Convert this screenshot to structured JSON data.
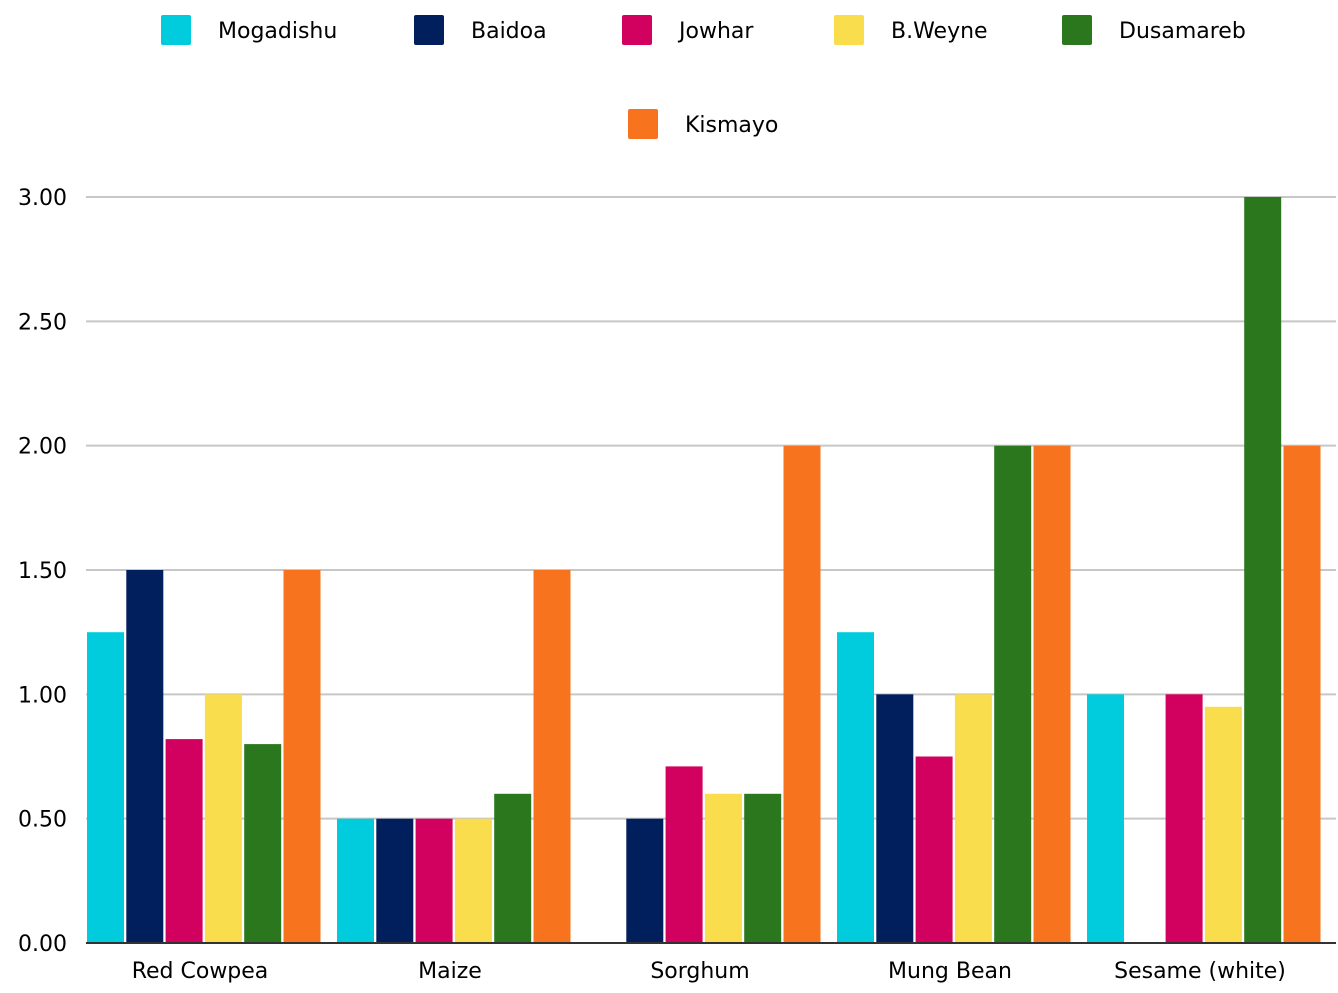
{
  "chart_data": {
    "type": "bar",
    "title": "",
    "xlabel": "",
    "ylabel": "",
    "ylim": [
      0,
      3
    ],
    "yticks": [
      "0.00",
      "0.50",
      "1.00",
      "1.50",
      "2.00",
      "2.50",
      "3.00"
    ],
    "categories": [
      "Red Cowpea",
      "Maize",
      "Sorghum",
      "Mung Bean",
      "Sesame (white)"
    ],
    "series": [
      {
        "name": "Mogadishu",
        "color": "#00CCDD",
        "values": [
          1.25,
          0.5,
          null,
          1.25,
          1.0
        ]
      },
      {
        "name": "Baidoa",
        "color": "#001F5C",
        "values": [
          1.5,
          0.5,
          0.5,
          1.0,
          null
        ]
      },
      {
        "name": "Jowhar",
        "color": "#D2005E",
        "values": [
          0.82,
          0.5,
          0.71,
          0.75,
          1.0
        ]
      },
      {
        "name": "B.Weyne",
        "color": "#FADD4D",
        "values": [
          1.0,
          0.5,
          0.6,
          1.0,
          0.95
        ]
      },
      {
        "name": "Dusamareb",
        "color": "#2B771E",
        "values": [
          0.8,
          0.6,
          0.6,
          2.0,
          3.0
        ]
      },
      {
        "name": "Kismayo",
        "color": "#F7731E",
        "values": [
          1.5,
          1.5,
          2.0,
          2.0,
          2.0
        ]
      }
    ],
    "grid": true,
    "legend_position": "top"
  }
}
